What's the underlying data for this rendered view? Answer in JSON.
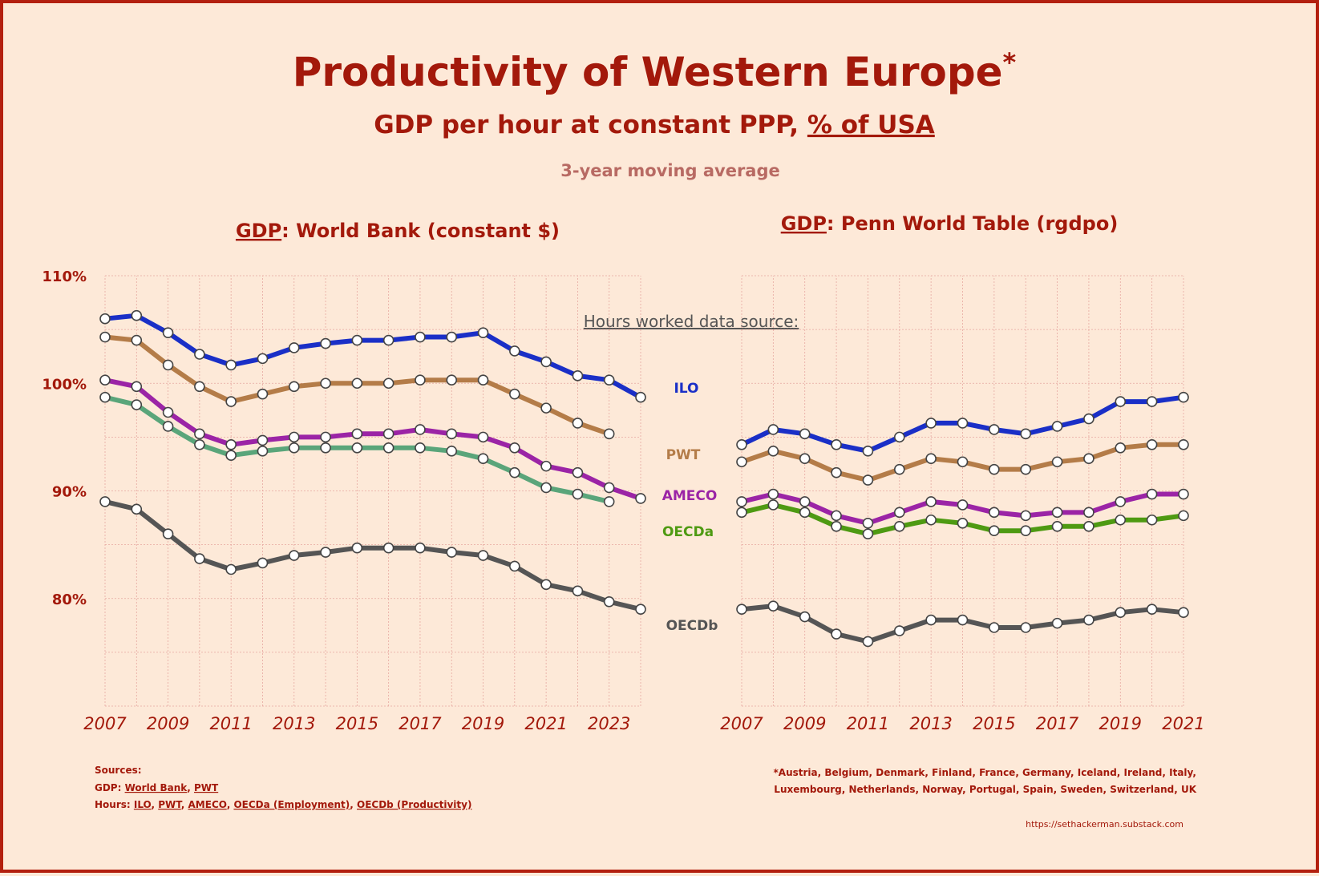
{
  "title": "Productivity of Western Europe",
  "title_asterisk": "*",
  "subtitle_pre": "GDP per hour at constant PPP, ",
  "subtitle_link": "% of USA",
  "subtitle2": "3-year moving average",
  "hours_label": "Hours worked data source:",
  "left_title_gdp": "GDP",
  "left_title_rest": ": World Bank (constant $)",
  "right_title_gdp": "GDP",
  "right_title_rest": ": Penn World Table (rgdpo)",
  "sources": {
    "heading": "Sources:",
    "gdp_label": "GDP: ",
    "gdp_links": [
      "World Bank",
      "PWT"
    ],
    "hours_label": "Hours: ",
    "hours_links": [
      "ILO",
      "PWT",
      "AMECO",
      "OECDa (Employment)",
      "OECDb (Productivity)"
    ]
  },
  "footnote_line1": "*Austria, Belgium, Denmark, Finland, France, Germany, Iceland, Ireland, Italy,",
  "footnote_line2": "Luxembourg, Netherlands, Norway, Portugal, Spain, Sweden, Switzerland, UK",
  "url": "https://sethackerman.substack.com",
  "colors": {
    "title": "#a3190b",
    "background": "#fde9d8",
    "ILO": "#1a2fc7",
    "PWT": "#b47c48",
    "AMECO": "#9b24a6",
    "OECDa_left": "#5aa57a",
    "OECDa_right": "#4e9a12",
    "OECDb": "#555555"
  },
  "chart_data": [
    {
      "type": "line",
      "title": "GDP: World Bank (constant $)",
      "xlabel": "",
      "ylabel": "",
      "xlim": [
        2007,
        2024
      ],
      "ylim": [
        70,
        110
      ],
      "x_ticks": [
        2007,
        2009,
        2011,
        2013,
        2015,
        2017,
        2019,
        2021,
        2023
      ],
      "y_ticks": [
        80,
        90,
        100,
        110
      ],
      "y_tick_labels": [
        "80%",
        "90%",
        "100%",
        "110%"
      ],
      "grid": true,
      "series": [
        {
          "name": "ILO",
          "color": "#1a2fc7",
          "x": [
            2007,
            2008,
            2009,
            2010,
            2011,
            2012,
            2013,
            2014,
            2015,
            2016,
            2017,
            2018,
            2019,
            2020,
            2021,
            2022,
            2023,
            2024
          ],
          "values": [
            106.0,
            106.3,
            104.7,
            102.7,
            101.7,
            102.3,
            103.3,
            103.7,
            104.0,
            104.0,
            104.3,
            104.3,
            104.7,
            103.0,
            102.0,
            100.7,
            100.3,
            98.7
          ]
        },
        {
          "name": "PWT",
          "color": "#b47c48",
          "x": [
            2007,
            2008,
            2009,
            2010,
            2011,
            2012,
            2013,
            2014,
            2015,
            2016,
            2017,
            2018,
            2019,
            2020,
            2021,
            2022,
            2023
          ],
          "values": [
            104.3,
            104.0,
            101.7,
            99.7,
            98.3,
            99.0,
            99.7,
            100.0,
            100.0,
            100.0,
            100.3,
            100.3,
            100.3,
            99.0,
            97.7,
            96.3,
            95.3
          ]
        },
        {
          "name": "AMECO",
          "color": "#9b24a6",
          "x": [
            2007,
            2008,
            2009,
            2010,
            2011,
            2012,
            2013,
            2014,
            2015,
            2016,
            2017,
            2018,
            2019,
            2020,
            2021,
            2022,
            2023,
            2024
          ],
          "values": [
            100.3,
            99.7,
            97.3,
            95.3,
            94.3,
            94.7,
            95.0,
            95.0,
            95.3,
            95.3,
            95.7,
            95.3,
            95.0,
            94.0,
            92.3,
            91.7,
            90.3,
            89.3
          ]
        },
        {
          "name": "OECDa",
          "color": "#5aa57a",
          "x": [
            2007,
            2008,
            2009,
            2010,
            2011,
            2012,
            2013,
            2014,
            2015,
            2016,
            2017,
            2018,
            2019,
            2020,
            2021,
            2022,
            2023
          ],
          "values": [
            98.7,
            98.0,
            96.0,
            94.3,
            93.3,
            93.7,
            94.0,
            94.0,
            94.0,
            94.0,
            94.0,
            93.7,
            93.0,
            91.7,
            90.3,
            89.7,
            89.0
          ]
        },
        {
          "name": "OECDb",
          "color": "#555555",
          "x": [
            2007,
            2008,
            2009,
            2010,
            2011,
            2012,
            2013,
            2014,
            2015,
            2016,
            2017,
            2018,
            2019,
            2020,
            2021,
            2022,
            2023,
            2024
          ],
          "values": [
            89.0,
            88.3,
            86.0,
            83.7,
            82.7,
            83.3,
            84.0,
            84.3,
            84.7,
            84.7,
            84.7,
            84.3,
            84.0,
            83.0,
            81.3,
            80.7,
            79.7,
            79.0
          ]
        }
      ]
    },
    {
      "type": "line",
      "title": "GDP: Penn World Table (rgdpo)",
      "xlabel": "",
      "ylabel": "",
      "xlim": [
        2007,
        2021
      ],
      "ylim": [
        70,
        110
      ],
      "x_ticks": [
        2007,
        2009,
        2011,
        2013,
        2015,
        2017,
        2019,
        2021
      ],
      "grid": true,
      "series": [
        {
          "name": "ILO",
          "color": "#1a2fc7",
          "x": [
            2007,
            2008,
            2009,
            2010,
            2011,
            2012,
            2013,
            2014,
            2015,
            2016,
            2017,
            2018,
            2019,
            2020,
            2021
          ],
          "values": [
            94.3,
            95.7,
            95.3,
            94.3,
            93.7,
            95.0,
            96.3,
            96.3,
            95.7,
            95.3,
            96.0,
            96.7,
            98.3,
            98.3,
            98.7
          ]
        },
        {
          "name": "PWT",
          "color": "#b47c48",
          "x": [
            2007,
            2008,
            2009,
            2010,
            2011,
            2012,
            2013,
            2014,
            2015,
            2016,
            2017,
            2018,
            2019,
            2020,
            2021
          ],
          "values": [
            92.7,
            93.7,
            93.0,
            91.7,
            91.0,
            92.0,
            93.0,
            92.7,
            92.0,
            92.0,
            92.7,
            93.0,
            94.0,
            94.3,
            94.3
          ]
        },
        {
          "name": "AMECO",
          "color": "#9b24a6",
          "x": [
            2007,
            2008,
            2009,
            2010,
            2011,
            2012,
            2013,
            2014,
            2015,
            2016,
            2017,
            2018,
            2019,
            2020,
            2021
          ],
          "values": [
            89.0,
            89.7,
            89.0,
            87.7,
            87.0,
            88.0,
            89.0,
            88.7,
            88.0,
            87.7,
            88.0,
            88.0,
            89.0,
            89.7,
            89.7
          ]
        },
        {
          "name": "OECDa",
          "color": "#4e9a12",
          "x": [
            2007,
            2008,
            2009,
            2010,
            2011,
            2012,
            2013,
            2014,
            2015,
            2016,
            2017,
            2018,
            2019,
            2020,
            2021
          ],
          "values": [
            88.0,
            88.7,
            88.0,
            86.7,
            86.0,
            86.7,
            87.3,
            87.0,
            86.3,
            86.3,
            86.7,
            86.7,
            87.3,
            87.3,
            87.7
          ]
        },
        {
          "name": "OECDb",
          "color": "#555555",
          "x": [
            2007,
            2008,
            2009,
            2010,
            2011,
            2012,
            2013,
            2014,
            2015,
            2016,
            2017,
            2018,
            2019,
            2020,
            2021
          ],
          "values": [
            79.0,
            79.3,
            78.3,
            76.7,
            76.0,
            77.0,
            78.0,
            78.0,
            77.3,
            77.3,
            77.7,
            78.0,
            78.7,
            79.0,
            78.7
          ]
        }
      ]
    }
  ],
  "legend": [
    {
      "name": "ILO",
      "color": "#1a2fc7"
    },
    {
      "name": "PWT",
      "color": "#b47c48"
    },
    {
      "name": "AMECO",
      "color": "#9b24a6"
    },
    {
      "name": "OECDa",
      "color": "#4e9a12"
    },
    {
      "name": "OECDb",
      "color": "#555555"
    }
  ]
}
